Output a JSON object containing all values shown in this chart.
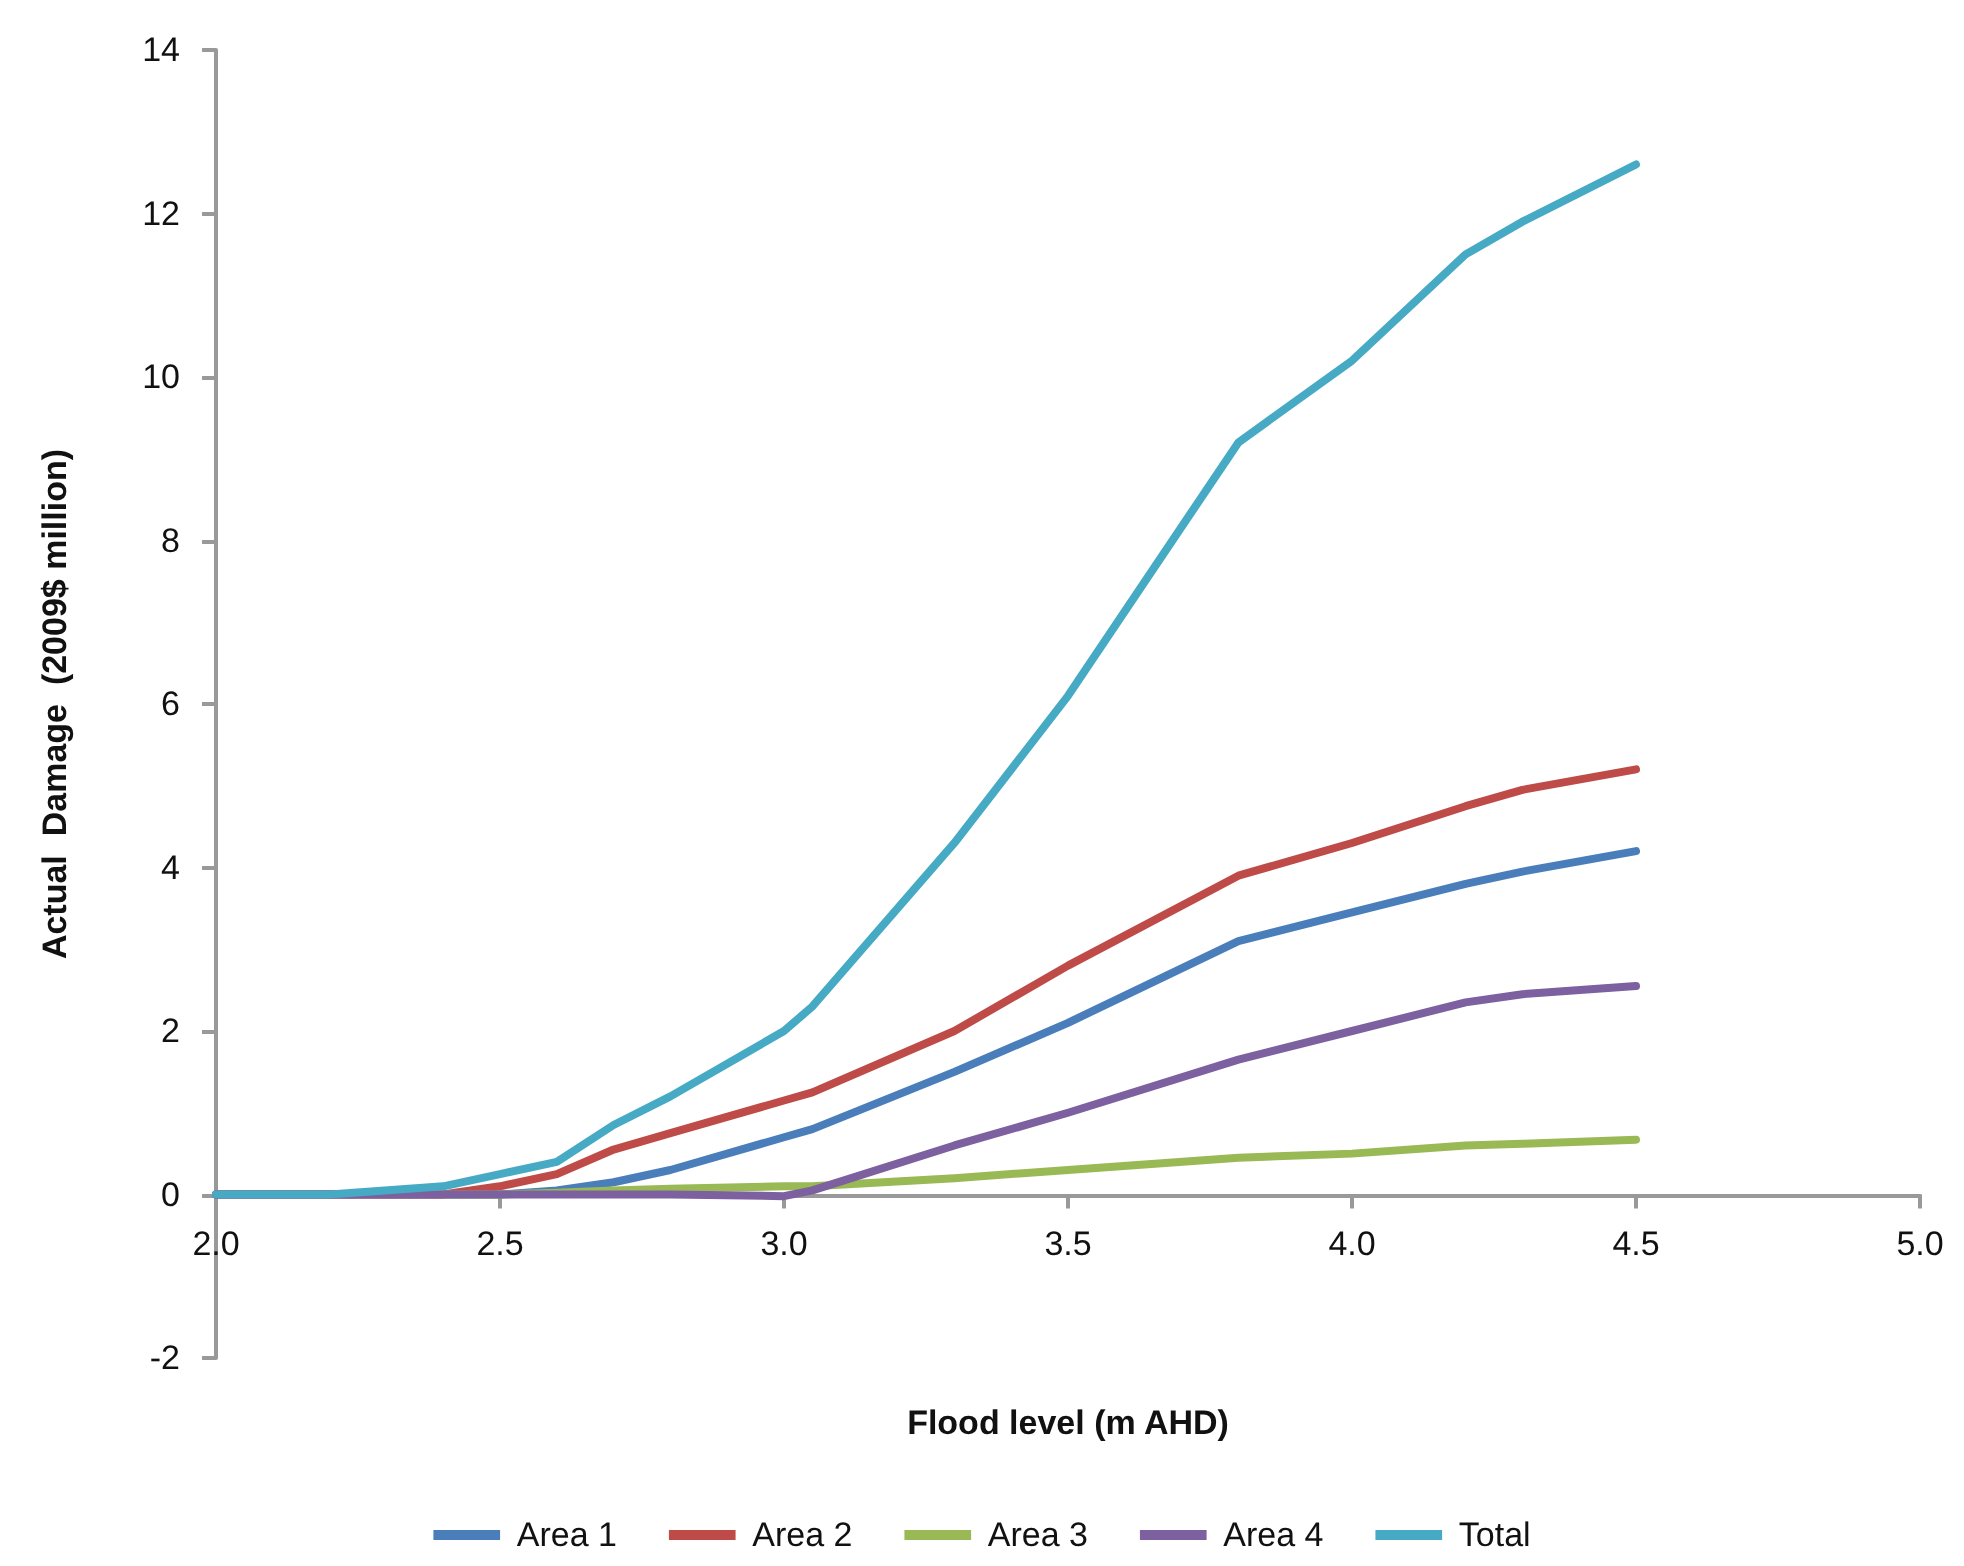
{
  "chart_data": {
    "type": "line",
    "xlabel": "Flood level (m AHD)",
    "ylabel": "Actual  Damage  (2009$ million)",
    "x": [
      2.0,
      2.2,
      2.4,
      2.5,
      2.6,
      2.7,
      2.8,
      3.0,
      3.05,
      3.3,
      3.5,
      3.8,
      4.0,
      4.2,
      4.3,
      4.5
    ],
    "series": [
      {
        "name": "Area 1",
        "color": "#4a7ebb",
        "values": [
          0,
          0,
          0,
          0,
          0.05,
          0.15,
          0.3,
          0.7,
          0.8,
          1.5,
          2.1,
          3.1,
          3.45,
          3.8,
          3.95,
          4.2
        ]
      },
      {
        "name": "Area 2",
        "color": "#be4b48",
        "values": [
          0,
          0,
          0,
          0.1,
          0.25,
          0.55,
          0.75,
          1.15,
          1.25,
          2.0,
          2.8,
          3.9,
          4.3,
          4.75,
          4.95,
          5.2
        ]
      },
      {
        "name": "Area 3",
        "color": "#98b954",
        "values": [
          null,
          null,
          0,
          0,
          0.02,
          0.05,
          0.07,
          0.1,
          0.1,
          0.2,
          0.3,
          0.45,
          0.5,
          0.6,
          0.62,
          0.67
        ]
      },
      {
        "name": "Area 4",
        "color": "#7d60a0",
        "values": [
          0,
          0,
          0,
          0,
          0,
          0,
          0,
          -0.02,
          0.05,
          0.6,
          1.0,
          1.65,
          2.0,
          2.35,
          2.45,
          2.55
        ]
      },
      {
        "name": "Total",
        "color": "#46aac5",
        "values": [
          0,
          0,
          0.1,
          0.25,
          0.4,
          0.85,
          1.2,
          2.0,
          2.3,
          4.3,
          6.1,
          9.2,
          10.2,
          11.5,
          11.9,
          12.6
        ]
      }
    ],
    "xlim": [
      2.0,
      5.0
    ],
    "xticks": [
      {
        "value": 2.0,
        "label": "2.0"
      },
      {
        "value": 2.5,
        "label": "2.5"
      },
      {
        "value": 3.0,
        "label": "3.0"
      },
      {
        "value": 3.5,
        "label": "3.5"
      },
      {
        "value": 4.0,
        "label": "4.0"
      },
      {
        "value": 4.5,
        "label": "4.5"
      },
      {
        "value": 5.0,
        "label": "5.0"
      }
    ],
    "ylim": [
      -2,
      14
    ],
    "yticks": [
      -2,
      0,
      2,
      4,
      6,
      8,
      10,
      12,
      14
    ],
    "grid": false,
    "legend": "bottom",
    "marker": "none",
    "line_style": "solid"
  }
}
